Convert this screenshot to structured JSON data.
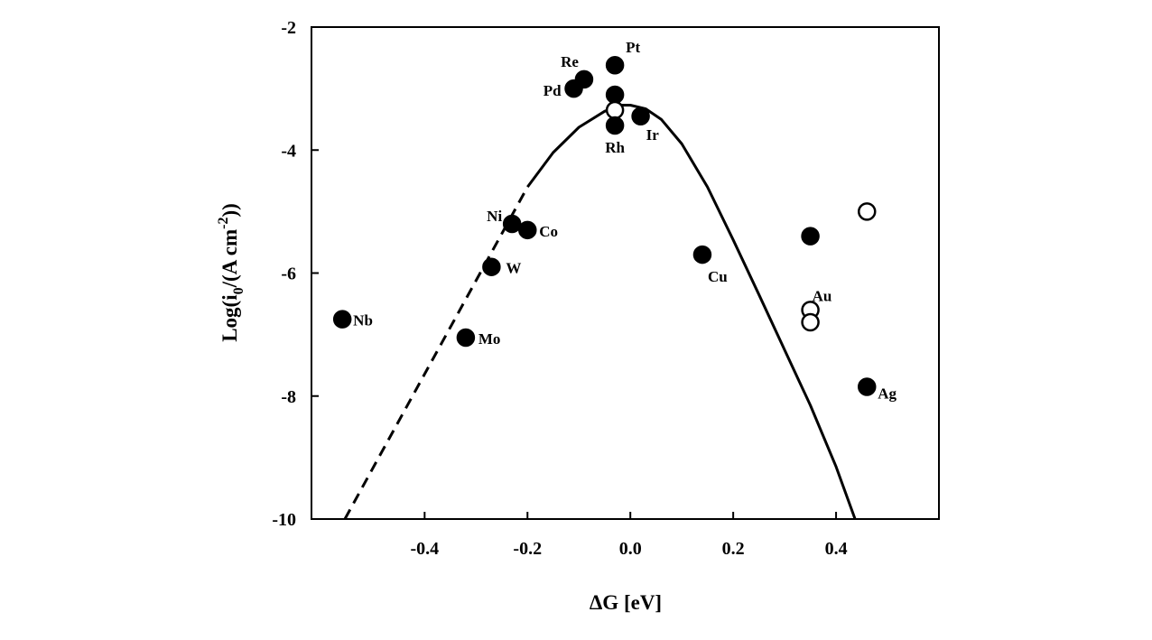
{
  "chart_data": {
    "type": "scatter",
    "xlabel": "ΔG [eV]",
    "ylabel": {
      "base": "Log(i",
      "sub": "0",
      "mid": "/(A cm",
      "sup": "-2",
      "end": "))"
    },
    "xlim": [
      -0.62,
      0.6
    ],
    "ylim": [
      -10,
      -2
    ],
    "x_ticks": [
      -0.4,
      -0.2,
      0.0,
      0.2,
      0.4
    ],
    "x_tick_labels": [
      "-0.4",
      "-0.2",
      "0.0",
      "0.2",
      "0.4"
    ],
    "y_ticks": [
      -2,
      -4,
      -6,
      -8,
      -10
    ],
    "y_tick_labels": [
      "-2",
      "-4",
      "-6",
      "-8",
      "-10"
    ],
    "grid": false,
    "legend": "none",
    "points": [
      {
        "x": -0.56,
        "y": -6.75,
        "filled": true,
        "label": "Nb"
      },
      {
        "x": -0.32,
        "y": -7.05,
        "filled": true,
        "label": "Mo"
      },
      {
        "x": -0.27,
        "y": -5.9,
        "filled": true,
        "label": "W"
      },
      {
        "x": -0.23,
        "y": -5.2,
        "filled": true,
        "label": "Ni"
      },
      {
        "x": -0.2,
        "y": -5.3,
        "filled": true,
        "label": "Co"
      },
      {
        "x": -0.11,
        "y": -3.0,
        "filled": true,
        "label": "Pd"
      },
      {
        "x": -0.09,
        "y": -2.85,
        "filled": true,
        "label": "Re"
      },
      {
        "x": -0.03,
        "y": -2.62,
        "filled": true,
        "label": "Pt"
      },
      {
        "x": -0.03,
        "y": -3.1,
        "filled": true,
        "label": ""
      },
      {
        "x": -0.03,
        "y": -3.35,
        "filled": false,
        "label": ""
      },
      {
        "x": -0.03,
        "y": -3.6,
        "filled": true,
        "label": "Rh"
      },
      {
        "x": 0.02,
        "y": -3.45,
        "filled": true,
        "label": "Ir"
      },
      {
        "x": 0.14,
        "y": -5.7,
        "filled": true,
        "label": "Cu"
      },
      {
        "x": 0.35,
        "y": -5.4,
        "filled": true,
        "label": ""
      },
      {
        "x": 0.46,
        "y": -5.0,
        "filled": false,
        "label": ""
      },
      {
        "x": 0.35,
        "y": -6.6,
        "filled": false,
        "label": "Au"
      },
      {
        "x": 0.35,
        "y": -6.8,
        "filled": false,
        "label": ""
      },
      {
        "x": 0.46,
        "y": -7.85,
        "filled": true,
        "label": "Ag"
      }
    ],
    "curves": [
      {
        "style": "dashed",
        "x": [
          -0.555,
          -0.2
        ],
        "y": [
          -10,
          -4.6
        ]
      },
      {
        "style": "solid",
        "x": [
          -0.2,
          -0.15,
          -0.1,
          -0.05,
          -0.02,
          0.0,
          0.03,
          0.06,
          0.1,
          0.15,
          0.2,
          0.25,
          0.3,
          0.35,
          0.4,
          0.437
        ],
        "y": [
          -4.6,
          -4.04,
          -3.63,
          -3.37,
          -3.27,
          -3.27,
          -3.33,
          -3.5,
          -3.9,
          -4.6,
          -5.46,
          -6.35,
          -7.25,
          -8.15,
          -9.15,
          -10
        ]
      }
    ]
  }
}
